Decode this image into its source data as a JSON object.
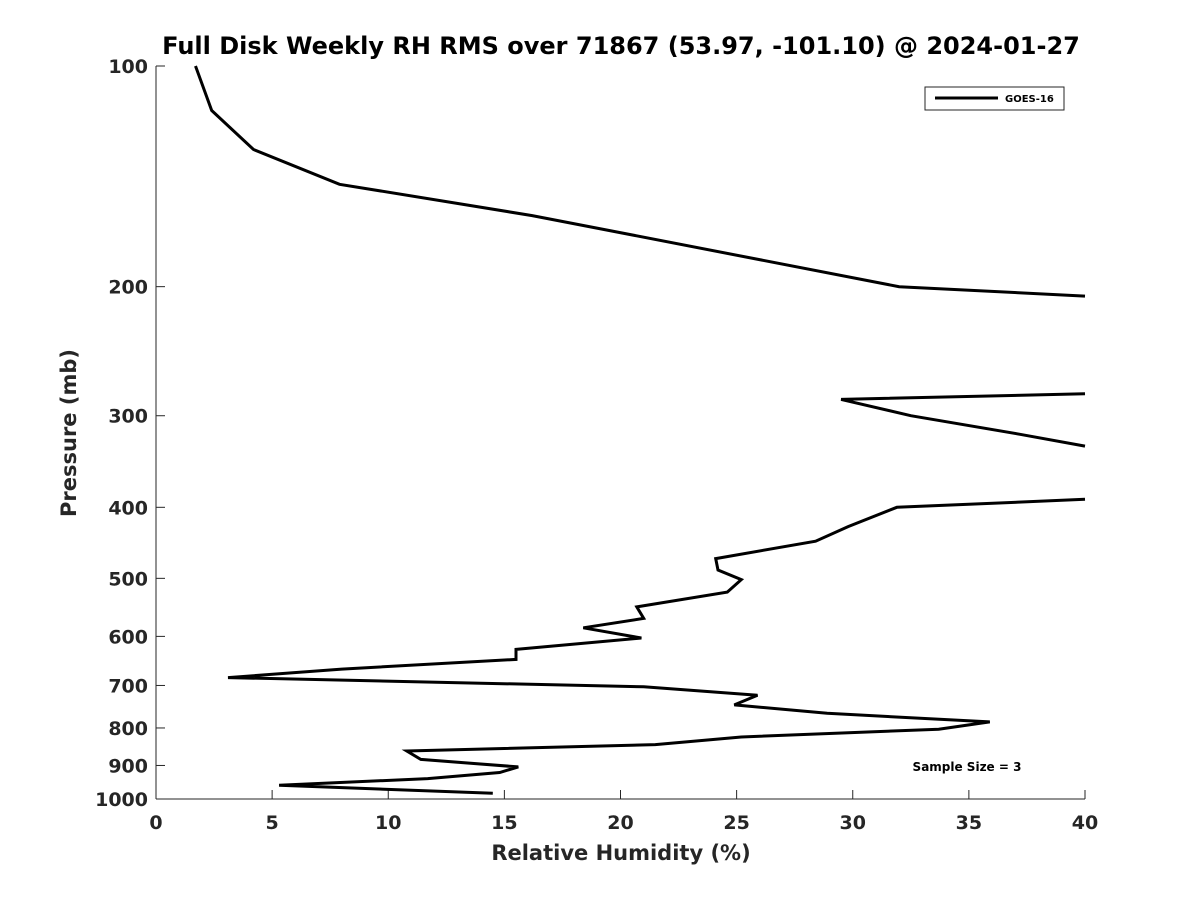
{
  "chart_data": {
    "type": "line",
    "title": "Full Disk Weekly RH RMS over 71867 (53.97, -101.10) @ 2024-01-27",
    "xlabel": "Relative Humidity (%)",
    "ylabel": "Pressure (mb)",
    "xlim": [
      0,
      40
    ],
    "ylim": [
      100,
      1000
    ],
    "y_scale": "log",
    "y_reversed": true,
    "grid": false,
    "legend_position": "top-right",
    "x_ticks": [
      "0",
      "5",
      "10",
      "15",
      "20",
      "25",
      "30",
      "35",
      "40"
    ],
    "y_ticks": [
      "100",
      "200",
      "300",
      "400",
      "500",
      "600",
      "700",
      "800",
      "900",
      "1000"
    ],
    "annotation": "Sample Size = 3",
    "series": [
      {
        "name": "GOES-16",
        "color": "#000000",
        "points": [
          {
            "x": 1.7,
            "y": 100
          },
          {
            "x": 2.4,
            "y": 115
          },
          {
            "x": 4.2,
            "y": 130
          },
          {
            "x": 7.9,
            "y": 145
          },
          {
            "x": 16.2,
            "y": 160
          },
          {
            "x": 32.0,
            "y": 200
          },
          {
            "x": 40.0,
            "y": 206
          },
          {
            "x": null,
            "y": null
          },
          {
            "x": 40.0,
            "y": 280
          },
          {
            "x": 29.5,
            "y": 285
          },
          {
            "x": 32.5,
            "y": 300
          },
          {
            "x": 37.2,
            "y": 318
          },
          {
            "x": 40.0,
            "y": 330
          },
          {
            "x": null,
            "y": null
          },
          {
            "x": 40.0,
            "y": 390
          },
          {
            "x": 31.9,
            "y": 400
          },
          {
            "x": 29.8,
            "y": 425
          },
          {
            "x": 28.4,
            "y": 445
          },
          {
            "x": 24.1,
            "y": 470
          },
          {
            "x": 24.2,
            "y": 487
          },
          {
            "x": 25.2,
            "y": 502
          },
          {
            "x": 24.6,
            "y": 522
          },
          {
            "x": 20.7,
            "y": 547
          },
          {
            "x": 21.0,
            "y": 567
          },
          {
            "x": 18.4,
            "y": 584
          },
          {
            "x": 20.9,
            "y": 603
          },
          {
            "x": 15.5,
            "y": 625
          },
          {
            "x": 15.5,
            "y": 645
          },
          {
            "x": 8.0,
            "y": 665
          },
          {
            "x": 3.1,
            "y": 683
          },
          {
            "x": 21.0,
            "y": 703
          },
          {
            "x": 25.9,
            "y": 722
          },
          {
            "x": 24.9,
            "y": 744
          },
          {
            "x": 28.9,
            "y": 764
          },
          {
            "x": 35.9,
            "y": 785
          },
          {
            "x": 33.7,
            "y": 803
          },
          {
            "x": 25.2,
            "y": 823
          },
          {
            "x": 21.5,
            "y": 843
          },
          {
            "x": 10.8,
            "y": 860
          },
          {
            "x": 11.4,
            "y": 883
          },
          {
            "x": 15.6,
            "y": 904
          },
          {
            "x": 14.8,
            "y": 920
          },
          {
            "x": 11.7,
            "y": 938
          },
          {
            "x": 5.3,
            "y": 958
          },
          {
            "x": 14.5,
            "y": 982
          }
        ]
      }
    ]
  }
}
